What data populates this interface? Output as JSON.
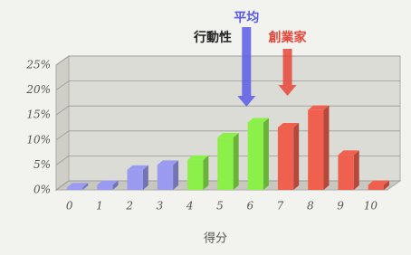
{
  "chart_data": {
    "type": "bar",
    "categories": [
      "0",
      "1",
      "2",
      "3",
      "4",
      "5",
      "6",
      "7",
      "8",
      "9",
      "10"
    ],
    "values": [
      0.5,
      1,
      4,
      5,
      6,
      10.5,
      13.5,
      12.5,
      16,
      7,
      1
    ],
    "colors": [
      "#9a9af0",
      "#9a9af0",
      "#9a9af0",
      "#9a9af0",
      "#8cf04a",
      "#8cf04a",
      "#8cf04a",
      "#f0604e",
      "#f0604e",
      "#f0604e",
      "#f0604e"
    ],
    "ylim": [
      0,
      25
    ],
    "yticks": [
      {
        "value": 0,
        "label": "0%"
      },
      {
        "value": 5,
        "label": "5%"
      },
      {
        "value": 10,
        "label": "10%"
      },
      {
        "value": 15,
        "label": "15%"
      },
      {
        "value": 20,
        "label": "20%"
      },
      {
        "value": 25,
        "label": "25%"
      }
    ],
    "grid": true,
    "xlabel": "得分",
    "annotations": [
      {
        "text": "平均",
        "color": "#5a5ae8"
      },
      {
        "text": "行動性",
        "color": "#222222"
      },
      {
        "text": "創業家",
        "color": "#e8453a"
      }
    ]
  }
}
